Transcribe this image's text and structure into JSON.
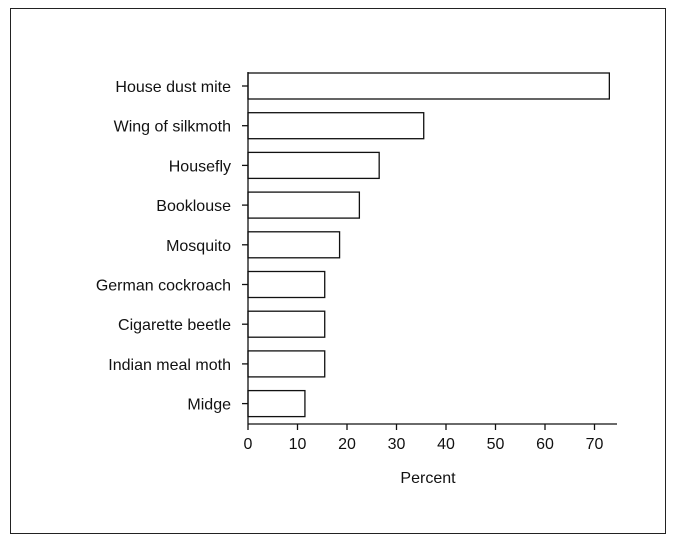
{
  "chart_data": {
    "type": "bar",
    "orientation": "horizontal",
    "categories": [
      "House dust mite",
      "Wing of silkmoth",
      "Housefly",
      "Booklouse",
      "Mosquito",
      "German cockroach",
      "Cigarette beetle",
      "Indian meal moth",
      "Midge"
    ],
    "values": [
      73,
      35.5,
      26.5,
      22.5,
      18.5,
      15.5,
      15.5,
      15.5,
      11.5
    ],
    "xlabel": "Percent",
    "ylabel": "",
    "xlim": [
      0,
      78
    ],
    "xticks": [
      0,
      10,
      20,
      30,
      40,
      50,
      60,
      70
    ],
    "grid": false,
    "colors": {
      "bar_fill": "#ffffff",
      "bar_stroke": "#111111",
      "axis": "#111111"
    }
  }
}
